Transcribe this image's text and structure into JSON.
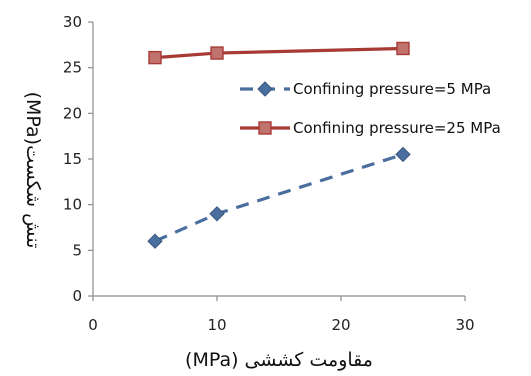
{
  "chart_data": {
    "type": "line",
    "title": "",
    "xlabel": "مقاومت کششی (MPa)",
    "ylabel": "تنش شکست(MPa)",
    "xlim": [
      0,
      30
    ],
    "ylim": [
      0,
      30
    ],
    "x_ticks": [
      "0",
      "10",
      "20",
      "30"
    ],
    "y_ticks": [
      "0",
      "5",
      "10",
      "15",
      "20",
      "25",
      "30"
    ],
    "grid": false,
    "legend_position": "right",
    "series": [
      {
        "name": "Confining pressure=5 MPa",
        "x": [
          5,
          10,
          25
        ],
        "y": [
          6.0,
          9.0,
          15.5
        ],
        "color": "#4a6f9e",
        "line_style": "dashed",
        "marker": "diamond"
      },
      {
        "name": "Confining pressure=25 MPa",
        "x": [
          5,
          10,
          25
        ],
        "y": [
          26.1,
          26.6,
          27.1
        ],
        "color": "#a83a36",
        "marker_fill": "#c0726c",
        "line_style": "solid",
        "marker": "square"
      }
    ]
  }
}
